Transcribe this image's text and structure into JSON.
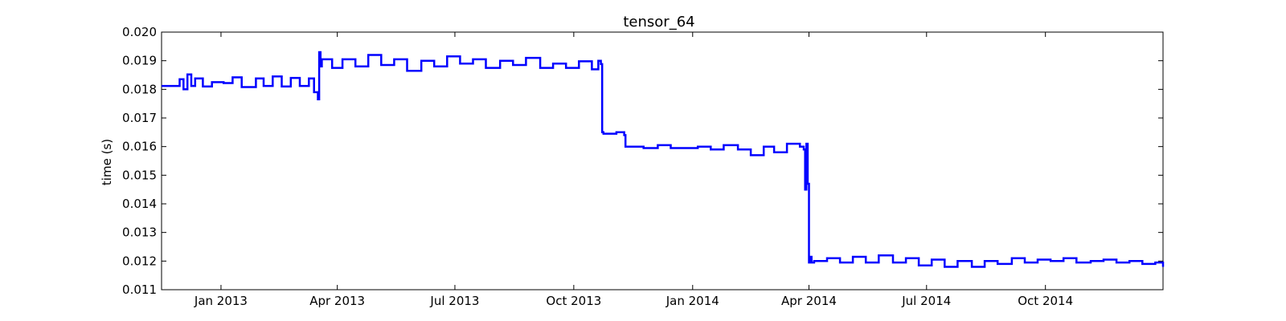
{
  "chart_data": {
    "type": "line",
    "title": "tensor_64",
    "xlabel": "",
    "ylabel": "time (s)",
    "ylim": [
      0.011,
      0.02
    ],
    "xlim": [
      "2012-11-16",
      "2014-12-31"
    ],
    "grid": false,
    "legend": "none",
    "y_ticks": [
      "0.011",
      "0.012",
      "0.013",
      "0.014",
      "0.015",
      "0.016",
      "0.017",
      "0.018",
      "0.019",
      "0.020"
    ],
    "x_ticks": [
      {
        "label": "Jan 2013",
        "date": "2013-01-01"
      },
      {
        "label": "Apr 2013",
        "date": "2013-04-01"
      },
      {
        "label": "Jul 2013",
        "date": "2013-07-01"
      },
      {
        "label": "Oct 2013",
        "date": "2013-10-01"
      },
      {
        "label": "Jan 2014",
        "date": "2014-01-01"
      },
      {
        "label": "Apr 2014",
        "date": "2014-04-01"
      },
      {
        "label": "Jul 2014",
        "date": "2014-07-01"
      },
      {
        "label": "Oct 2014",
        "date": "2014-10-01"
      }
    ],
    "series": [
      {
        "color": "#0000ff",
        "x": [
          "2012-11-16",
          "2012-11-30",
          "2012-12-03",
          "2012-12-06",
          "2012-12-09",
          "2012-12-12",
          "2012-12-18",
          "2012-12-25",
          "2013-01-03",
          "2013-01-10",
          "2013-01-17",
          "2013-01-28",
          "2013-02-03",
          "2013-02-10",
          "2013-02-17",
          "2013-02-24",
          "2013-03-03",
          "2013-03-10",
          "2013-03-14",
          "2013-03-17",
          "2013-03-18",
          "2013-03-19",
          "2013-03-20",
          "2013-03-28",
          "2013-04-05",
          "2013-04-15",
          "2013-04-25",
          "2013-05-05",
          "2013-05-15",
          "2013-05-25",
          "2013-06-05",
          "2013-06-15",
          "2013-06-25",
          "2013-07-05",
          "2013-07-15",
          "2013-07-25",
          "2013-08-05",
          "2013-08-15",
          "2013-08-25",
          "2013-09-05",
          "2013-09-15",
          "2013-09-25",
          "2013-10-05",
          "2013-10-15",
          "2013-10-20",
          "2013-10-22",
          "2013-10-23",
          "2013-10-24",
          "2013-11-03",
          "2013-11-09",
          "2013-11-10",
          "2013-11-24",
          "2013-12-05",
          "2013-12-15",
          "2013-12-25",
          "2014-01-05",
          "2014-01-15",
          "2014-01-25",
          "2014-02-05",
          "2014-02-15",
          "2014-02-25",
          "2014-03-05",
          "2014-03-15",
          "2014-03-25",
          "2014-03-28",
          "2014-03-29",
          "2014-03-30",
          "2014-03-31",
          "2014-04-01",
          "2014-04-02",
          "2014-04-03",
          "2014-04-05",
          "2014-04-15",
          "2014-04-25",
          "2014-05-05",
          "2014-05-15",
          "2014-05-25",
          "2014-06-05",
          "2014-06-15",
          "2014-06-25",
          "2014-07-05",
          "2014-07-15",
          "2014-07-25",
          "2014-08-05",
          "2014-08-15",
          "2014-08-25",
          "2014-09-05",
          "2014-09-15",
          "2014-09-25",
          "2014-10-05",
          "2014-10-15",
          "2014-10-25",
          "2014-11-05",
          "2014-11-15",
          "2014-11-25",
          "2014-12-05",
          "2014-12-15",
          "2014-12-25",
          "2014-12-31"
        ],
        "y": [
          0.01812,
          0.01835,
          0.018,
          0.01852,
          0.01812,
          0.01838,
          0.0181,
          0.01825,
          0.01822,
          0.01842,
          0.01808,
          0.01838,
          0.01812,
          0.01845,
          0.0181,
          0.0184,
          0.01812,
          0.01838,
          0.0179,
          0.01765,
          0.0193,
          0.0188,
          0.01905,
          0.01875,
          0.01905,
          0.0188,
          0.0192,
          0.01885,
          0.01905,
          0.01865,
          0.019,
          0.0188,
          0.01915,
          0.0189,
          0.01905,
          0.01875,
          0.019,
          0.01885,
          0.0191,
          0.01875,
          0.0189,
          0.01875,
          0.01898,
          0.0187,
          0.019,
          0.01888,
          0.0165,
          0.01645,
          0.0165,
          0.0164,
          0.016,
          0.01595,
          0.01605,
          0.01595,
          0.01595,
          0.016,
          0.0159,
          0.01605,
          0.0159,
          0.0157,
          0.016,
          0.0158,
          0.0161,
          0.016,
          0.0159,
          0.0145,
          0.0161,
          0.0147,
          0.01195,
          0.01215,
          0.01195,
          0.012,
          0.0121,
          0.01195,
          0.01215,
          0.01195,
          0.0122,
          0.01195,
          0.0121,
          0.01185,
          0.01205,
          0.0118,
          0.012,
          0.0118,
          0.012,
          0.0119,
          0.0121,
          0.01195,
          0.01205,
          0.012,
          0.0121,
          0.01195,
          0.012,
          0.01205,
          0.01195,
          0.012,
          0.0119,
          0.01195,
          0.0118
        ]
      }
    ]
  }
}
